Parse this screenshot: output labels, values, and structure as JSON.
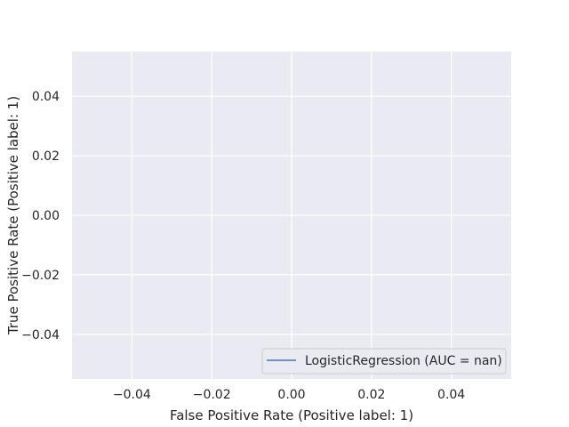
{
  "chart_data": {
    "type": "line",
    "title": "",
    "xlabel": "False Positive Rate (Positive label: 1)",
    "ylabel": "True Positive Rate (Positive label: 1)",
    "xlim": [
      -0.055,
      0.055
    ],
    "ylim": [
      -0.055,
      0.055
    ],
    "x_ticks": [
      -0.04,
      -0.02,
      0.0,
      0.02,
      0.04
    ],
    "x_tick_labels": [
      "−0.04",
      "−0.02",
      "0.00",
      "0.02",
      "0.04"
    ],
    "y_ticks": [
      -0.04,
      -0.02,
      0.0,
      0.02,
      0.04
    ],
    "y_tick_labels": [
      "−0.04",
      "−0.02",
      "0.00",
      "0.02",
      "0.04"
    ],
    "grid": true,
    "legend_position": "lower-right",
    "series": [
      {
        "name": "LogisticRegression (AUC = nan)",
        "x": [],
        "y": [],
        "color": "#4c72b0"
      }
    ],
    "colors": {
      "plot_background": "#eaeaf2",
      "grid": "#ffffff",
      "text": "#262626"
    }
  }
}
